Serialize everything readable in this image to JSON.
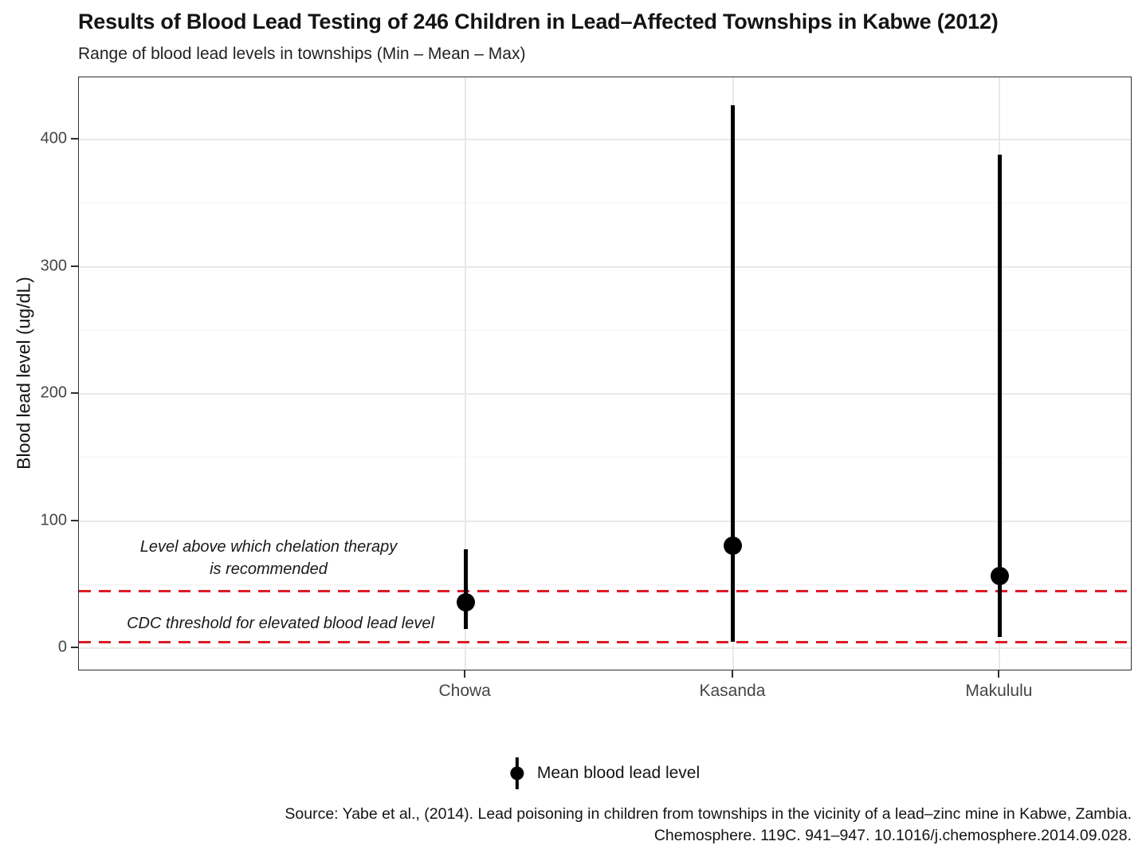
{
  "title": "Results of Blood Lead Testing of 246 Children in Lead–Affected Townships in Kabwe (2012)",
  "subtitle": "Range of blood lead levels in townships (Min – Mean – Max)",
  "chart_data": {
    "type": "pointrange",
    "categories": [
      "Chowa",
      "Kasanda",
      "Makululu"
    ],
    "series": [
      {
        "name": "min",
        "values": [
          15,
          5,
          9
        ]
      },
      {
        "name": "mean",
        "values": [
          36,
          81,
          57
        ]
      },
      {
        "name": "max",
        "values": [
          78,
          427,
          388
        ]
      }
    ],
    "xlabel": "",
    "ylabel": "Blood lead level (ug/dL)",
    "ylim": [
      -18,
      449
    ],
    "yticks": [
      0,
      100,
      200,
      300,
      400
    ],
    "yticks_minor": [
      50,
      150,
      250,
      350
    ],
    "grid": "on",
    "legend_position": "bottom",
    "legend_label": "Mean blood lead level",
    "reference_lines": [
      {
        "value": 45,
        "style": "dashed",
        "color": "#dd1c26",
        "label": "Level above which chelation therapy is recommended"
      },
      {
        "value": 5,
        "style": "dashed",
        "color": "#dd1c26",
        "label": "CDC threshold for elevated blood lead level"
      }
    ]
  },
  "annotations": {
    "chelation_line1": "Level above which chelation therapy",
    "chelation_line2": "is recommended",
    "cdc": "CDC threshold for elevated blood lead level"
  },
  "caption": {
    "line1": "Source: Yabe et al., (2014). Lead poisoning in children from townships in the vicinity of a lead–zinc mine in Kabwe, Zambia.",
    "line2": "Chemosphere. 119C. 941–947. 10.1016/j.chemosphere.2014.09.028."
  },
  "colors": {
    "reference_line": "#dd1c26",
    "pointrange": "#000000",
    "grid_major": "#e8e8e8",
    "grid_minor": "#f2f2f2",
    "axis_text": "#454545",
    "title_text": "#141414",
    "panel_border": "#2f2f2f"
  }
}
